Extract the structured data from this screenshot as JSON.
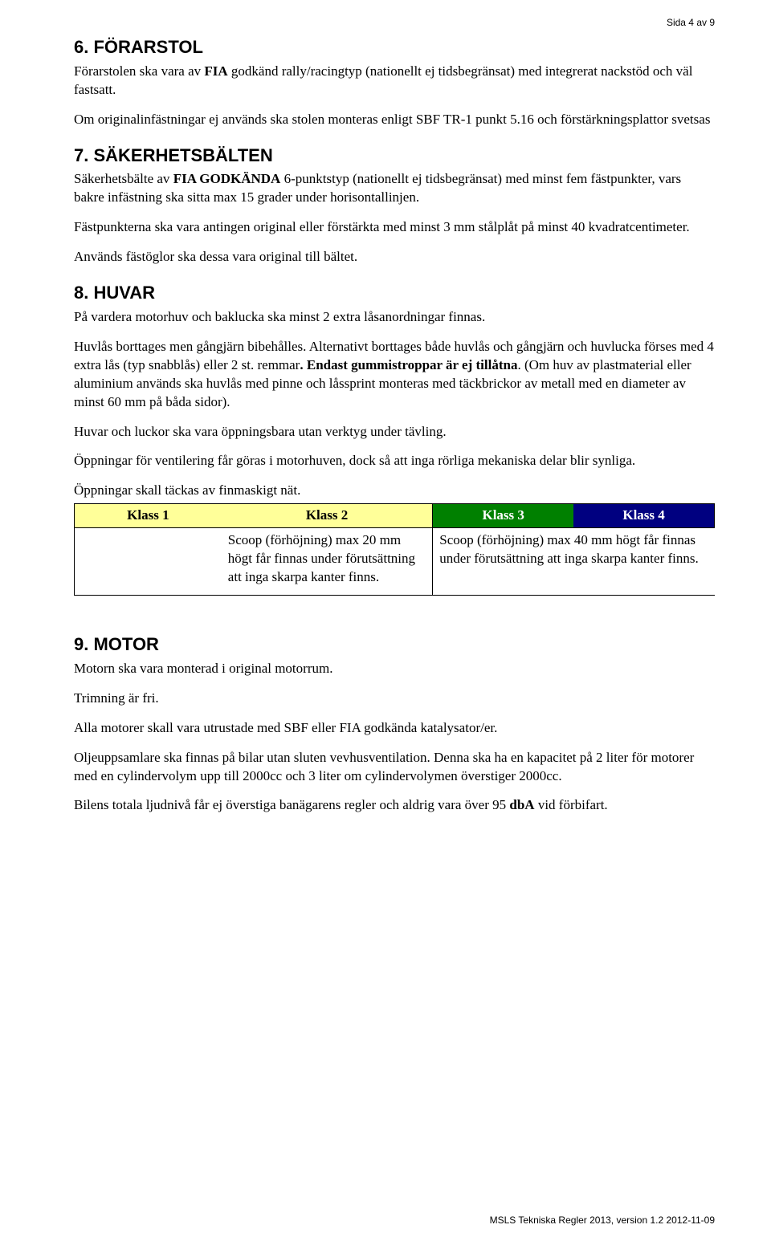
{
  "page_header": "Sida 4 av 9",
  "sections": {
    "s6": {
      "title": "6. FÖRARSTOL",
      "p1_prefix": "Förarstolen ska vara av ",
      "p1_bold": "FIA",
      "p1_suffix": " godkänd rally/racingtyp (nationellt ej tidsbegränsat) med integrerat nackstöd och väl fastsatt.",
      "p2": "Om originalinfästningar ej används ska stolen monteras enligt SBF TR-1 punkt 5.16 och förstärkningsplattor svetsas"
    },
    "s7": {
      "title": "7. SÄKERHETSBÄLTEN",
      "p1_prefix": "Säkerhetsbälte av ",
      "p1_bold": "FIA GODKÄNDA",
      "p1_suffix": " 6-punktstyp (nationellt ej tidsbegränsat) med minst fem fästpunkter, vars bakre infästning ska sitta max 15 grader under horisontallinjen.",
      "p2": "Fästpunkterna ska vara antingen original eller förstärkta med minst 3 mm stålplåt på minst 40 kvadratcentimeter.",
      "p3": "Används fästöglor ska dessa vara original till bältet."
    },
    "s8": {
      "title": "8. HUVAR",
      "p1": "På vardera motorhuv och baklucka ska minst 2 extra låsanordningar finnas.",
      "p2_a": "Huvlås borttages men gångjärn bibehålles. Alternativt borttages både huvlås och gångjärn och huvlucka förses med 4 extra lås (typ snabblås) eller 2 st. remmar",
      "p2_bold": ". Endast gummistroppar är ej tillåtna",
      "p2_b": ". (Om huv av plastmaterial eller aluminium används ska huvlås med pinne och låssprint monteras med täckbrickor av metall med en diameter av minst 60 mm på båda sidor).",
      "p3": "Huvar och luckor ska vara öppningsbara utan verktyg under tävling.",
      "p4": "Öppningar för ventilering får göras i motorhuven, dock så att inga rörliga mekaniska delar blir synliga.",
      "p5": "Öppningar skall täckas av finmaskigt nät."
    },
    "table": {
      "headers": [
        "Klass 1",
        "Klass 2",
        "Klass 3",
        "Klass 4"
      ],
      "header_styles": {
        "yellow_bg": "#ffff99",
        "green_bg": "#008000",
        "blue_bg": "#000080",
        "white_text": "#ffffff",
        "black_text": "#000000"
      },
      "cell_left": "Scoop (förhöjning) max 20 mm högt får finnas under förutsättning att inga skarpa kanter finns.",
      "cell_right": "Scoop (förhöjning) max 40 mm högt får finnas under förutsättning att inga skarpa kanter finns."
    },
    "s9": {
      "title": "9. MOTOR",
      "p1": "Motorn ska vara monterad i original motorrum.",
      "p2": "Trimning är fri.",
      "p3": "Alla motorer skall vara utrustade med SBF eller FIA godkända katalysator/er.",
      "p4": "Oljeuppsamlare ska finnas på bilar utan sluten vevhusventilation. Denna ska ha en kapacitet på 2 liter för motorer med en cylindervolym upp till 2000cc och 3 liter om cylindervolymen överstiger 2000cc.",
      "p5_a": "Bilens totala ljudnivå får ej överstiga banägarens regler och aldrig vara över 95 ",
      "p5_bold": "dbA",
      "p5_b": " vid förbifart."
    }
  },
  "footer": "MSLS Tekniska Regler 2013, version 1.2  2012-11-09"
}
